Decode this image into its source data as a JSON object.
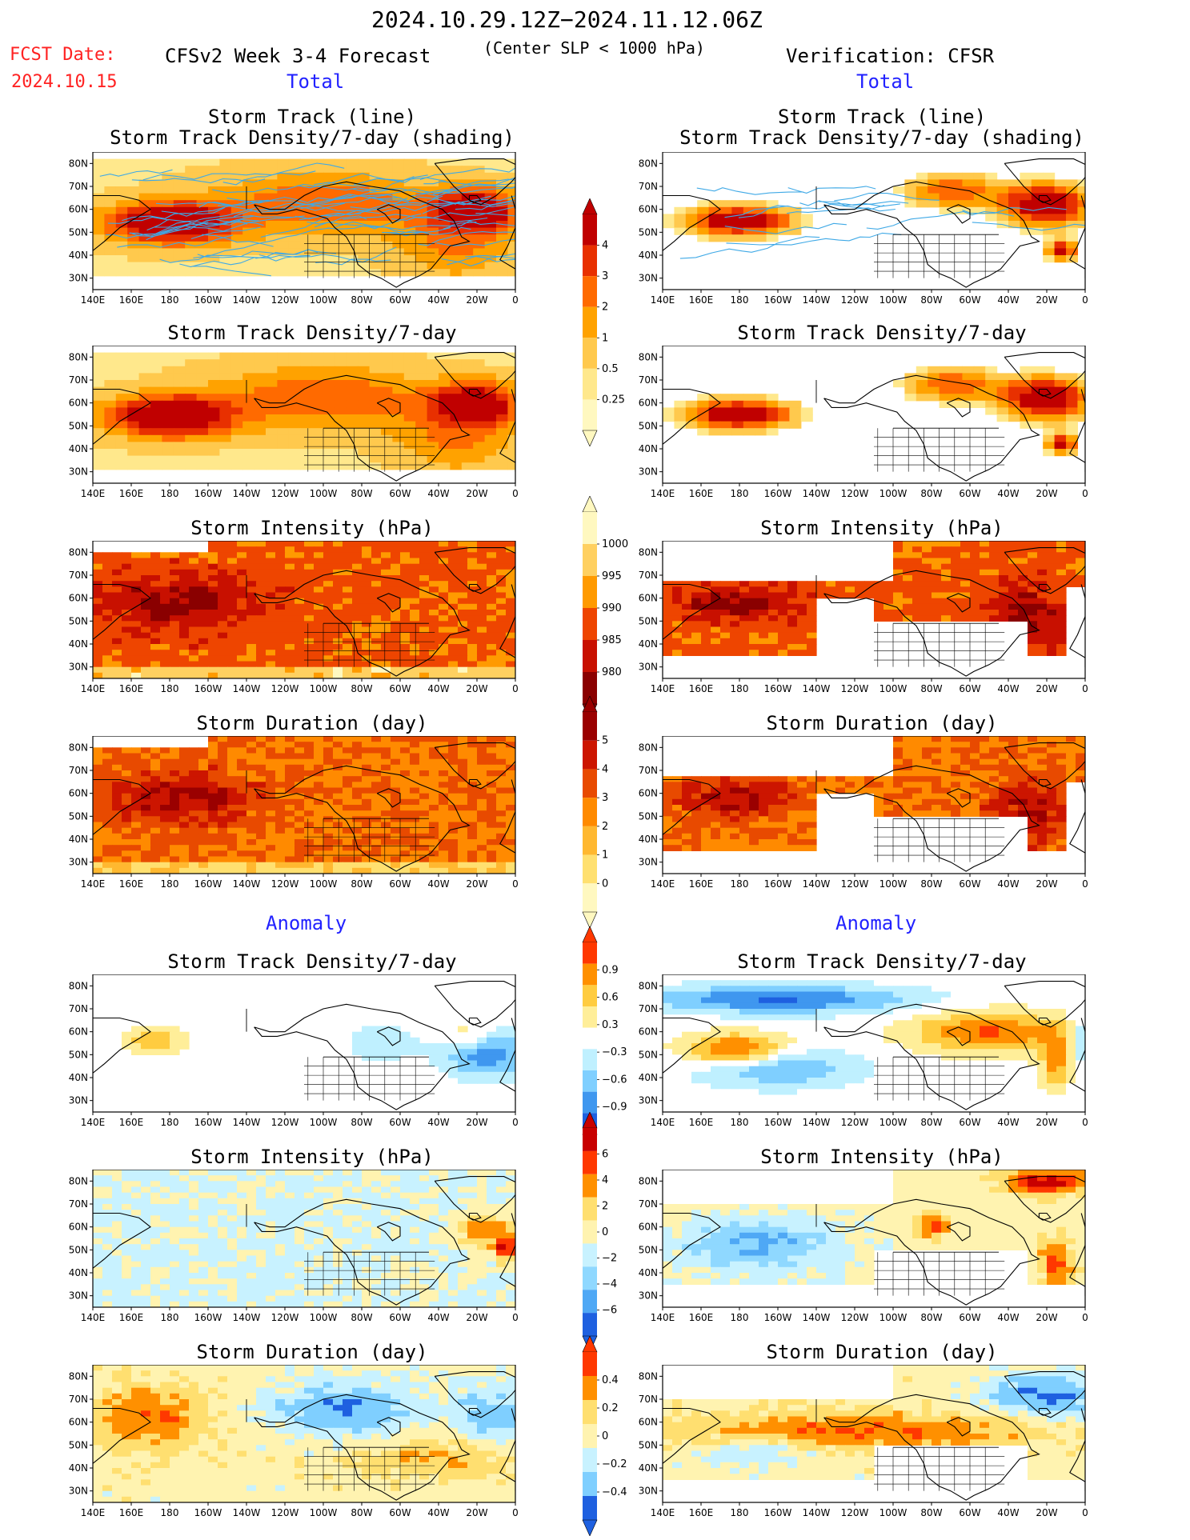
{
  "header": {
    "period": "2024.10.29.12Z−2024.11.12.06Z",
    "fcst_label": "FCST Date:",
    "fcst_date": "2024.10.15",
    "forecast_title": "CFSv2 Week 3-4 Forecast",
    "slp_note": "(Center SLP < 1000 hPa)",
    "verification": "Verification: CFSR"
  },
  "sections": {
    "total_left": "Total",
    "total_right": "Total",
    "anomaly_left": "Anomaly",
    "anomaly_right": "Anomaly"
  },
  "titles": {
    "track_line": "Storm Track (line)",
    "track_shading": "Storm Track Density/7-day (shading)",
    "density": "Storm Track Density/7-day",
    "intensity": "Storm Intensity (hPa)",
    "duration": "Storm Duration (day)"
  },
  "axes": {
    "lat_labels": [
      "80N",
      "70N",
      "60N",
      "50N",
      "40N",
      "30N"
    ],
    "lon_labels": [
      "140E",
      "160E",
      "180",
      "160W",
      "140W",
      "120W",
      "100W",
      "80W",
      "60W",
      "40W",
      "20W",
      "0"
    ]
  },
  "colorbars": [
    {
      "id": "density",
      "labels": [
        "4",
        "3",
        "2",
        "1",
        "0.5",
        "0.25"
      ],
      "colors": [
        "#c00000",
        "#e83000",
        "#ff6a00",
        "#ffa200",
        "#ffc94d",
        "#ffe88c",
        "#fff8c0"
      ]
    },
    {
      "id": "intensity",
      "labels": [
        "1000",
        "995",
        "990",
        "985",
        "980"
      ],
      "colors": [
        "#fff8c0",
        "#ffd060",
        "#ff9a00",
        "#ee4500",
        "#c81000",
        "#8a0000"
      ]
    },
    {
      "id": "duration",
      "labels": [
        "5",
        "4",
        "3",
        "2",
        "1",
        "0"
      ],
      "colors": [
        "#9a0000",
        "#cc1500",
        "#e84a00",
        "#ff8a00",
        "#ffb830",
        "#ffe070",
        "#fff8c0"
      ]
    },
    {
      "id": "density_anom",
      "labels": [
        "0.9",
        "0.6",
        "0.3",
        "−0.3",
        "−0.6",
        "−0.9"
      ],
      "colors": [
        "#ff3800",
        "#ff9000",
        "#ffcc40",
        "#ffee99",
        "#ffffff",
        "#bff0ff",
        "#7fcfff",
        "#3f97ef",
        "#1e60e0"
      ]
    },
    {
      "id": "intensity_anom",
      "labels": [
        "6",
        "4",
        "2",
        "0",
        "−2",
        "−4",
        "−6"
      ],
      "colors": [
        "#c80000",
        "#ff3800",
        "#ff9000",
        "#ffdf70",
        "#fff3b0",
        "#c8f2ff",
        "#8fd8ff",
        "#4fa8f5",
        "#1e60e0"
      ]
    },
    {
      "id": "duration_anom",
      "labels": [
        "0.4",
        "0.2",
        "0",
        "−0.2",
        "−0.4"
      ],
      "colors": [
        "#ff3800",
        "#ff9000",
        "#ffdf70",
        "#fff3b0",
        "#c8f2ff",
        "#7fcfff",
        "#1e60e0"
      ]
    }
  ],
  "colors": {
    "track_lines": "#3fa9e6",
    "blue_heading": "#2222ff",
    "red_heading": "#ff2222"
  }
}
